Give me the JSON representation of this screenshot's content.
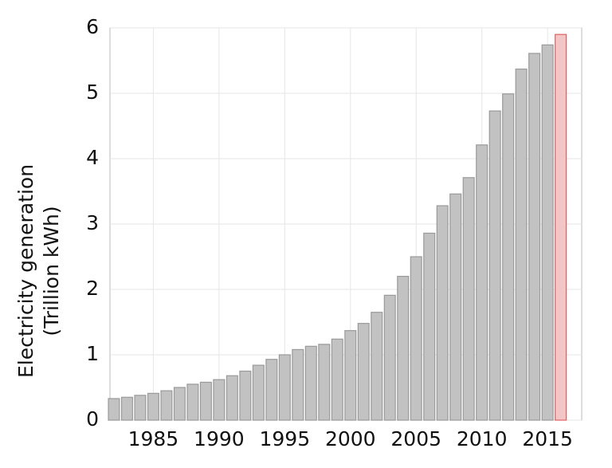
{
  "chart_data": {
    "type": "bar",
    "y_label": [
      "Electricity generation",
      "(Trillion kWh)"
    ],
    "x": [
      1982,
      1983,
      1984,
      1985,
      1986,
      1987,
      1988,
      1989,
      1990,
      1991,
      1992,
      1993,
      1994,
      1995,
      1996,
      1997,
      1998,
      1999,
      2000,
      2001,
      2002,
      2003,
      2004,
      2005,
      2006,
      2007,
      2008,
      2009,
      2010,
      2011,
      2012,
      2013,
      2014,
      2015,
      2016
    ],
    "values": [
      0.33,
      0.35,
      0.38,
      0.41,
      0.45,
      0.5,
      0.55,
      0.58,
      0.62,
      0.68,
      0.75,
      0.84,
      0.93,
      1.0,
      1.08,
      1.13,
      1.16,
      1.24,
      1.37,
      1.48,
      1.65,
      1.91,
      2.2,
      2.5,
      2.86,
      3.28,
      3.46,
      3.71,
      4.21,
      4.73,
      4.99,
      5.37,
      5.61,
      5.74,
      5.9
    ],
    "colors": [
      "#c2c2c2",
      "#c2c2c2",
      "#c2c2c2",
      "#c2c2c2",
      "#c2c2c2",
      "#c2c2c2",
      "#c2c2c2",
      "#c2c2c2",
      "#c2c2c2",
      "#c2c2c2",
      "#c2c2c2",
      "#c2c2c2",
      "#c2c2c2",
      "#c2c2c2",
      "#c2c2c2",
      "#c2c2c2",
      "#c2c2c2",
      "#c2c2c2",
      "#c2c2c2",
      "#c2c2c2",
      "#c2c2c2",
      "#c2c2c2",
      "#c2c2c2",
      "#c2c2c2",
      "#c2c2c2",
      "#c2c2c2",
      "#c2c2c2",
      "#c2c2c2",
      "#c2c2c2",
      "#c2c2c2",
      "#c2c2c2",
      "#c2c2c2",
      "#c2c2c2",
      "#c2c2c2",
      "#f3c6c6"
    ],
    "edge_colors": [
      "#9a9a9a",
      "#9a9a9a",
      "#9a9a9a",
      "#9a9a9a",
      "#9a9a9a",
      "#9a9a9a",
      "#9a9a9a",
      "#9a9a9a",
      "#9a9a9a",
      "#9a9a9a",
      "#9a9a9a",
      "#9a9a9a",
      "#9a9a9a",
      "#9a9a9a",
      "#9a9a9a",
      "#9a9a9a",
      "#9a9a9a",
      "#9a9a9a",
      "#9a9a9a",
      "#9a9a9a",
      "#9a9a9a",
      "#9a9a9a",
      "#9a9a9a",
      "#9a9a9a",
      "#9a9a9a",
      "#9a9a9a",
      "#9a9a9a",
      "#9a9a9a",
      "#9a9a9a",
      "#9a9a9a",
      "#9a9a9a",
      "#9a9a9a",
      "#9a9a9a",
      "#9a9a9a",
      "#e06060"
    ],
    "xlim": [
      1981.7,
      2017.6
    ],
    "xticks": [
      1985,
      1990,
      1995,
      2000,
      2005,
      2010,
      2015
    ],
    "ylim": [
      0,
      6
    ],
    "yticks": [
      0,
      1,
      2,
      3,
      4,
      5,
      6
    ],
    "grid": true
  }
}
